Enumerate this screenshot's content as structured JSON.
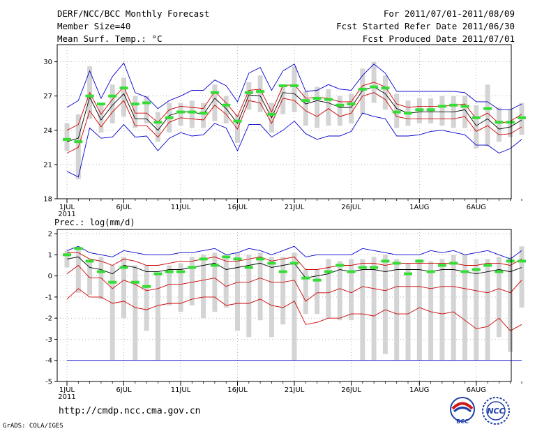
{
  "header": {
    "title": "DERF/NCC/BCC Monthly Forecast",
    "member_size": "Member Size=40",
    "variable": "Mean Surf. Temp.: °C",
    "period": "For 2011/07/01-2011/08/09",
    "started": "Fcst Started Refer Date 2011/06/30",
    "produced": "Fcst Produced Date 2011/07/01"
  },
  "footer": {
    "url": "http://cmdp.ncc.cma.gov.cn",
    "credit": "GrADS: COLA/IGES",
    "logo_bcc_label": "BCC",
    "logo_ncc_label": "NCC"
  },
  "colors": {
    "envelope": "#0000cc",
    "spread": "#cc0000",
    "mean": "#000000",
    "median_mark": "#33dd33",
    "box": "#d4d4d4",
    "grid": "#888888"
  },
  "chart_data": [
    {
      "type": "line",
      "title": "Mean Surf. Temp.: °C",
      "ylim": [
        18,
        31.5
      ],
      "yticks": [
        18,
        21,
        24,
        27,
        30
      ],
      "x_labels": [
        {
          "day": 1,
          "label": "1JUL",
          "sub": "2011"
        },
        {
          "day": 6,
          "label": "6JUL"
        },
        {
          "day": 11,
          "label": "11JUL"
        },
        {
          "day": 16,
          "label": "16JUL"
        },
        {
          "day": 21,
          "label": "21JUL"
        },
        {
          "day": 26,
          "label": "26JUL"
        },
        {
          "day": 32,
          "label": "1AUG"
        },
        {
          "day": 37,
          "label": "6AUG"
        }
      ],
      "series": [
        {
          "name": "ensemble mean",
          "role": "mean",
          "values": [
            23.0,
            23.3,
            26.9,
            24.9,
            26.2,
            27.2,
            25.0,
            25.0,
            24.0,
            25.3,
            25.6,
            25.6,
            25.4,
            26.8,
            25.9,
            24.6,
            27.1,
            27.0,
            25.1,
            27.3,
            27.2,
            26.3,
            26.6,
            26.4,
            26.0,
            26.0,
            27.5,
            27.8,
            27.2,
            25.9,
            25.5,
            25.6,
            25.6,
            25.6,
            25.6,
            25.8,
            24.4,
            25.0,
            24.1,
            24.3,
            24.9
          ]
        },
        {
          "name": "spread upper",
          "role": "spread",
          "values": [
            24.0,
            24.5,
            27.3,
            25.4,
            26.7,
            27.8,
            25.5,
            25.5,
            24.7,
            25.8,
            26.1,
            26.0,
            25.9,
            27.4,
            26.4,
            25.2,
            27.5,
            27.6,
            25.6,
            27.9,
            28.0,
            26.8,
            26.9,
            26.8,
            26.5,
            26.5,
            27.9,
            28.2,
            27.8,
            26.3,
            26.0,
            26.1,
            26.1,
            26.1,
            26.2,
            26.3,
            25.0,
            25.5,
            24.6,
            24.8,
            25.4
          ]
        },
        {
          "name": "spread lower",
          "role": "spread",
          "values": [
            22.0,
            22.5,
            25.7,
            24.3,
            25.6,
            26.6,
            24.4,
            24.4,
            23.4,
            24.7,
            25.1,
            25.0,
            24.9,
            26.2,
            25.4,
            24.1,
            26.6,
            26.4,
            24.6,
            26.8,
            26.6,
            25.7,
            25.2,
            25.9,
            25.2,
            25.5,
            27.0,
            27.3,
            26.7,
            25.2,
            25.0,
            25.0,
            25.0,
            25.0,
            25.0,
            25.2,
            23.9,
            24.4,
            23.6,
            23.7,
            24.3
          ]
        },
        {
          "name": "envelope max",
          "role": "envelope",
          "values": [
            26.0,
            26.6,
            29.2,
            26.8,
            28.7,
            29.9,
            27.3,
            26.9,
            25.9,
            26.6,
            27.0,
            27.5,
            27.5,
            28.4,
            27.9,
            26.5,
            29.0,
            29.5,
            27.5,
            29.2,
            29.8,
            27.4,
            27.5,
            28.0,
            27.6,
            27.5,
            28.8,
            29.8,
            29.0,
            27.4,
            27.4,
            27.4,
            27.4,
            27.4,
            27.4,
            27.3,
            26.5,
            26.5,
            25.8,
            25.8,
            26.3
          ]
        },
        {
          "name": "envelope min",
          "role": "envelope",
          "values": [
            20.4,
            19.9,
            24.2,
            23.3,
            23.4,
            24.5,
            23.4,
            23.5,
            22.2,
            23.3,
            23.8,
            23.5,
            23.6,
            24.6,
            24.2,
            22.2,
            24.5,
            24.5,
            23.4,
            24.0,
            24.8,
            23.7,
            23.2,
            23.5,
            23.5,
            23.9,
            25.5,
            25.2,
            25.0,
            23.5,
            23.5,
            23.6,
            23.9,
            24.0,
            23.8,
            23.6,
            22.7,
            22.7,
            22.0,
            22.4,
            23.2
          ]
        }
      ],
      "boxes": [
        [
          22.2,
          24.6
        ],
        [
          19.7,
          25.4
        ],
        [
          25.0,
          29.6
        ],
        [
          23.8,
          26.4
        ],
        [
          24.6,
          28.0
        ],
        [
          25.2,
          28.6
        ],
        [
          24.2,
          27.0
        ],
        [
          24.6,
          27.0
        ],
        [
          23.0,
          25.6
        ],
        [
          23.8,
          26.4
        ],
        [
          24.4,
          26.4
        ],
        [
          24.2,
          26.6
        ],
        [
          24.2,
          26.4
        ],
        [
          24.8,
          28.0
        ],
        [
          24.6,
          27.0
        ],
        [
          22.9,
          25.4
        ],
        [
          25.8,
          28.2
        ],
        [
          25.6,
          28.8
        ],
        [
          23.8,
          26.4
        ],
        [
          25.4,
          28.0
        ],
        [
          25.6,
          29.6
        ],
        [
          24.4,
          27.4
        ],
        [
          24.2,
          27.8
        ],
        [
          24.4,
          27.6
        ],
        [
          24.4,
          27.0
        ],
        [
          24.6,
          27.2
        ],
        [
          25.4,
          29.4
        ],
        [
          26.4,
          30.0
        ],
        [
          25.8,
          28.8
        ],
        [
          24.2,
          27.2
        ],
        [
          24.4,
          26.6
        ],
        [
          24.6,
          26.8
        ],
        [
          24.6,
          26.8
        ],
        [
          24.4,
          27.0
        ],
        [
          24.2,
          27.0
        ],
        [
          24.2,
          27.0
        ],
        [
          22.4,
          26.2
        ],
        [
          22.6,
          28.0
        ],
        [
          23.0,
          26.0
        ],
        [
          23.4,
          25.8
        ],
        [
          23.6,
          26.4
        ]
      ],
      "medians": [
        23.2,
        23.0,
        27.0,
        26.3,
        27.0,
        27.7,
        26.3,
        26.4,
        24.7,
        25.1,
        25.6,
        25.6,
        25.5,
        27.3,
        26.2,
        24.8,
        27.3,
        27.4,
        25.4,
        27.9,
        27.9,
        26.6,
        26.8,
        26.7,
        26.2,
        26.3,
        27.6,
        27.8,
        27.7,
        25.6,
        25.5,
        25.8,
        25.8,
        26.1,
        26.2,
        26.1,
        25.1,
        25.9,
        24.7,
        24.7,
        25.1
      ]
    },
    {
      "type": "line",
      "title": "Prec.: log(mm/d)",
      "ylim": [
        -5,
        2.2
      ],
      "yticks": [
        -5,
        -4,
        -3,
        -2,
        -1,
        0,
        1,
        2
      ],
      "x_labels": [
        {
          "day": 1,
          "label": "1JUL",
          "sub": "2011"
        },
        {
          "day": 6,
          "label": "6JUL"
        },
        {
          "day": 11,
          "label": "11JUL"
        },
        {
          "day": 16,
          "label": "16JUL"
        },
        {
          "day": 21,
          "label": "21JUL"
        },
        {
          "day": 26,
          "label": "26JUL"
        },
        {
          "day": 32,
          "label": "1AUG"
        },
        {
          "day": 37,
          "label": "6AUG"
        }
      ],
      "series": [
        {
          "name": "ensemble mean",
          "role": "mean",
          "values": [
            0.8,
            0.9,
            0.4,
            0.3,
            0.1,
            0.5,
            0.4,
            0.2,
            0.2,
            0.3,
            0.3,
            0.4,
            0.5,
            0.6,
            0.3,
            0.4,
            0.5,
            0.6,
            0.4,
            0.5,
            0.6,
            -0.1,
            0.0,
            0.1,
            0.3,
            0.2,
            0.3,
            0.3,
            0.2,
            0.3,
            0.3,
            0.3,
            0.2,
            0.3,
            0.3,
            0.2,
            0.1,
            0.2,
            0.3,
            0.2,
            0.4
          ]
        },
        {
          "name": "spread upper",
          "role": "spread",
          "values": [
            1.1,
            1.1,
            0.8,
            0.7,
            0.5,
            0.8,
            0.7,
            0.5,
            0.5,
            0.6,
            0.7,
            0.7,
            0.8,
            0.9,
            0.7,
            0.7,
            0.8,
            0.9,
            0.7,
            0.8,
            0.9,
            0.3,
            0.3,
            0.4,
            0.5,
            0.5,
            0.6,
            0.6,
            0.5,
            0.6,
            0.6,
            0.6,
            0.6,
            0.6,
            0.6,
            0.5,
            0.5,
            0.6,
            0.6,
            0.5,
            0.8
          ]
        },
        {
          "name": "spread lower",
          "role": "spread",
          "values": [
            0.1,
            0.5,
            -0.1,
            -0.1,
            -0.6,
            -0.2,
            -0.4,
            -0.7,
            -0.6,
            -0.4,
            -0.4,
            -0.3,
            -0.2,
            -0.1,
            -0.5,
            -0.3,
            -0.3,
            -0.1,
            -0.3,
            -0.3,
            -0.2,
            -1.2,
            -0.8,
            -0.8,
            -0.6,
            -0.8,
            -0.5,
            -0.6,
            -0.7,
            -0.5,
            -0.5,
            -0.5,
            -0.6,
            -0.5,
            -0.5,
            -0.6,
            -0.7,
            -0.8,
            -0.6,
            -0.8,
            -0.2
          ]
        },
        {
          "name": "spread lower 2",
          "role": "spread",
          "values": [
            -1.1,
            -0.6,
            -1.0,
            -1.0,
            -1.3,
            -1.2,
            -1.5,
            -1.6,
            -1.4,
            -1.3,
            -1.3,
            -1.1,
            -1.0,
            -1.0,
            -1.4,
            -1.3,
            -1.3,
            -1.1,
            -1.4,
            -1.5,
            -1.2,
            -2.3,
            -2.2,
            -2.0,
            -2.0,
            -1.8,
            -1.8,
            -1.9,
            -1.6,
            -1.8,
            -1.8,
            -1.5,
            -1.7,
            -1.8,
            -1.7,
            -2.1,
            -2.5,
            -2.4,
            -2.0,
            -2.6,
            -2.3
          ]
        },
        {
          "name": "envelope max",
          "role": "envelope",
          "values": [
            1.2,
            1.4,
            1.1,
            1.0,
            0.9,
            1.2,
            1.1,
            1.0,
            1.0,
            1.0,
            1.1,
            1.1,
            1.2,
            1.3,
            1.0,
            1.1,
            1.3,
            1.2,
            1.0,
            1.2,
            1.4,
            0.9,
            1.0,
            1.0,
            1.0,
            1.0,
            1.3,
            1.2,
            1.1,
            1.0,
            1.0,
            1.0,
            1.2,
            1.1,
            1.2,
            1.0,
            1.1,
            1.2,
            1.0,
            0.8,
            1.2
          ]
        },
        {
          "name": "envelope min",
          "role": "envelope",
          "values": [
            -4,
            -4,
            -4,
            -4,
            -4,
            -4,
            -4,
            -4,
            -4,
            -4,
            -4,
            -4,
            -4,
            -4,
            -4,
            -4,
            -4,
            -4,
            -4,
            -4,
            -4,
            -4,
            -4,
            -4,
            -4,
            -4,
            -4,
            -4,
            -4,
            -4,
            -4,
            -4,
            -4,
            -4,
            -4,
            -4,
            -4,
            -4,
            -4,
            -4,
            -4
          ]
        }
      ],
      "boxes": [
        [
          0.4,
          1.2
        ],
        [
          -0.8,
          1.3
        ],
        [
          -0.9,
          0.7
        ],
        [
          -1.1,
          0.9
        ],
        [
          -4,
          0.5
        ],
        [
          -2.0,
          0.9
        ],
        [
          -4,
          0.5
        ],
        [
          -2.6,
          0.5
        ],
        [
          -4,
          0.1
        ],
        [
          -1.4,
          0.5
        ],
        [
          -1.7,
          0.6
        ],
        [
          -1.4,
          0.9
        ],
        [
          -2.0,
          1.0
        ],
        [
          -1.7,
          1.1
        ],
        [
          -1.5,
          0.9
        ],
        [
          -2.6,
          1.1
        ],
        [
          -2.9,
          1.0
        ],
        [
          -2.1,
          1.1
        ],
        [
          -2.9,
          0.9
        ],
        [
          -2.3,
          0.9
        ],
        [
          -4,
          1.1
        ],
        [
          -1.8,
          0.3
        ],
        [
          -1.8,
          0.3
        ],
        [
          -2.0,
          0.8
        ],
        [
          -2.1,
          0.7
        ],
        [
          -2.1,
          0.8
        ],
        [
          -4,
          0.8
        ],
        [
          -4,
          0.9
        ],
        [
          -3.7,
          1.0
        ],
        [
          -4,
          0.8
        ],
        [
          -4,
          0.6
        ],
        [
          -4,
          0.8
        ],
        [
          -4,
          0.7
        ],
        [
          -4,
          0.8
        ],
        [
          -4,
          1.0
        ],
        [
          -4,
          1.0
        ],
        [
          -4,
          0.8
        ],
        [
          -4,
          0.8
        ],
        [
          -2.9,
          0.9
        ],
        [
          -3.6,
          0.9
        ],
        [
          -1.5,
          1.4
        ]
      ],
      "medians": [
        1.0,
        1.3,
        0.7,
        0.2,
        -0.3,
        0.4,
        -0.3,
        -0.5,
        0.1,
        0.2,
        0.2,
        0.4,
        0.8,
        0.5,
        0.9,
        0.8,
        0.4,
        0.8,
        0.6,
        0.2,
        0.6,
        -0.1,
        -0.2,
        0.2,
        0.5,
        0.2,
        0.4,
        0.4,
        0.7,
        0.6,
        0.1,
        0.7,
        0.2,
        0.5,
        0.6,
        0.2,
        0.3,
        0.5,
        0.2,
        0.7,
        0.7
      ]
    }
  ],
  "prec_title": "Prec.: log(mm/d)"
}
